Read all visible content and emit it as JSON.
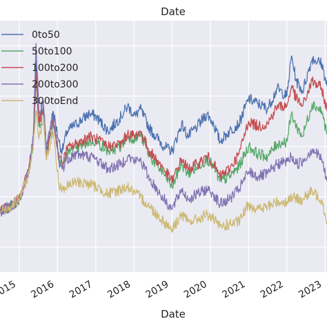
{
  "chart_data": {
    "type": "line",
    "title": "Date",
    "xlabel": "Date",
    "ylabel": "",
    "x_tick_labels": [
      "2015",
      "2016",
      "2017",
      "2018",
      "2019",
      "2020",
      "2021",
      "2022",
      "2023"
    ],
    "xlim": [
      "2014-07-01",
      "2023-01-20"
    ],
    "ylim": [
      0,
      10
    ],
    "grid": true,
    "legend_position": "top-left",
    "background_color": "#eaeaf2",
    "series": [
      {
        "name": "0to50",
        "color": "#4c72b0",
        "points": [
          [
            "2014-07-01",
            2.4
          ],
          [
            "2014-10-01",
            2.6
          ],
          [
            "2015-01-01",
            2.9
          ],
          [
            "2015-04-01",
            4.0
          ],
          [
            "2015-05-15",
            5.3
          ],
          [
            "2015-06-10",
            8.4
          ],
          [
            "2015-07-08",
            6.0
          ],
          [
            "2015-08-20",
            6.6
          ],
          [
            "2015-09-15",
            4.8
          ],
          [
            "2015-11-20",
            6.4
          ],
          [
            "2016-01-15",
            5.2
          ],
          [
            "2016-02-15",
            4.8
          ],
          [
            "2016-04-01",
            5.6
          ],
          [
            "2016-07-01",
            5.9
          ],
          [
            "2016-11-01",
            6.3
          ],
          [
            "2017-01-01",
            6.2
          ],
          [
            "2017-05-01",
            5.6
          ],
          [
            "2017-09-01",
            6.2
          ],
          [
            "2017-11-01",
            6.6
          ],
          [
            "2018-01-15",
            6.2
          ],
          [
            "2018-03-01",
            6.5
          ],
          [
            "2018-06-01",
            5.7
          ],
          [
            "2018-10-15",
            5.0
          ],
          [
            "2019-01-01",
            4.8
          ],
          [
            "2019-04-01",
            5.9
          ],
          [
            "2019-06-01",
            5.4
          ],
          [
            "2019-09-01",
            5.8
          ],
          [
            "2019-12-01",
            6.3
          ],
          [
            "2020-02-01",
            5.9
          ],
          [
            "2020-04-01",
            5.2
          ],
          [
            "2020-07-01",
            5.6
          ],
          [
            "2020-10-01",
            5.9
          ],
          [
            "2021-01-01",
            6.9
          ],
          [
            "2021-04-01",
            6.7
          ],
          [
            "2021-07-01",
            6.5
          ],
          [
            "2021-10-01",
            7.3
          ],
          [
            "2022-01-01",
            7.0
          ],
          [
            "2022-02-15",
            8.6
          ],
          [
            "2022-04-01",
            7.6
          ],
          [
            "2022-06-01",
            7.2
          ],
          [
            "2022-09-01",
            8.5
          ],
          [
            "2022-12-01",
            8.3
          ],
          [
            "2023-01-20",
            7.4
          ]
        ]
      },
      {
        "name": "50to100",
        "color": "#55a868",
        "points": [
          [
            "2014-07-01",
            2.4
          ],
          [
            "2014-10-01",
            2.6
          ],
          [
            "2015-01-01",
            2.9
          ],
          [
            "2015-04-01",
            4.0
          ],
          [
            "2015-05-15",
            5.2
          ],
          [
            "2015-06-10",
            7.6
          ],
          [
            "2015-07-08",
            5.8
          ],
          [
            "2015-08-20",
            6.4
          ],
          [
            "2015-09-15",
            4.6
          ],
          [
            "2015-11-20",
            6.0
          ],
          [
            "2016-01-15",
            4.5
          ],
          [
            "2016-02-15",
            4.2
          ],
          [
            "2016-04-01",
            4.7
          ],
          [
            "2016-07-01",
            4.9
          ],
          [
            "2016-11-01",
            5.2
          ],
          [
            "2017-01-01",
            5.2
          ],
          [
            "2017-05-01",
            4.8
          ],
          [
            "2017-09-01",
            5.0
          ],
          [
            "2017-11-01",
            5.4
          ],
          [
            "2018-01-15",
            5.3
          ],
          [
            "2018-03-01",
            5.5
          ],
          [
            "2018-06-01",
            4.6
          ],
          [
            "2018-10-15",
            3.9
          ],
          [
            "2019-01-01",
            3.4
          ],
          [
            "2019-04-01",
            4.3
          ],
          [
            "2019-06-01",
            3.9
          ],
          [
            "2019-09-01",
            4.2
          ],
          [
            "2019-12-01",
            4.5
          ],
          [
            "2020-02-01",
            4.2
          ],
          [
            "2020-04-01",
            3.6
          ],
          [
            "2020-07-01",
            3.8
          ],
          [
            "2020-10-01",
            4.2
          ],
          [
            "2021-01-01",
            5.0
          ],
          [
            "2021-04-01",
            4.7
          ],
          [
            "2021-07-01",
            4.6
          ],
          [
            "2021-10-01",
            5.1
          ],
          [
            "2022-01-01",
            5.2
          ],
          [
            "2022-02-15",
            6.3
          ],
          [
            "2022-04-01",
            5.8
          ],
          [
            "2022-06-01",
            5.4
          ],
          [
            "2022-09-01",
            6.7
          ],
          [
            "2022-12-01",
            6.4
          ],
          [
            "2023-01-20",
            5.5
          ]
        ]
      },
      {
        "name": "100to200",
        "color": "#c44e52",
        "points": [
          [
            "2014-07-01",
            2.4
          ],
          [
            "2014-10-01",
            2.6
          ],
          [
            "2015-01-01",
            2.9
          ],
          [
            "2015-04-01",
            4.0
          ],
          [
            "2015-05-15",
            5.2
          ],
          [
            "2015-06-10",
            7.9
          ],
          [
            "2015-07-08",
            5.9
          ],
          [
            "2015-08-20",
            6.5
          ],
          [
            "2015-09-15",
            4.7
          ],
          [
            "2015-11-20",
            6.1
          ],
          [
            "2016-01-15",
            4.7
          ],
          [
            "2016-02-15",
            4.3
          ],
          [
            "2016-04-01",
            4.9
          ],
          [
            "2016-07-01",
            5.1
          ],
          [
            "2016-11-01",
            5.4
          ],
          [
            "2017-01-01",
            5.3
          ],
          [
            "2017-05-01",
            5.0
          ],
          [
            "2017-09-01",
            5.1
          ],
          [
            "2017-11-01",
            5.5
          ],
          [
            "2018-01-15",
            5.4
          ],
          [
            "2018-03-01",
            5.6
          ],
          [
            "2018-06-01",
            4.8
          ],
          [
            "2018-10-15",
            4.1
          ],
          [
            "2019-01-01",
            3.6
          ],
          [
            "2019-04-01",
            4.5
          ],
          [
            "2019-06-01",
            4.1
          ],
          [
            "2019-09-01",
            4.3
          ],
          [
            "2019-12-01",
            4.6
          ],
          [
            "2020-02-01",
            4.3
          ],
          [
            "2020-04-01",
            3.8
          ],
          [
            "2020-07-01",
            4.1
          ],
          [
            "2020-10-01",
            4.7
          ],
          [
            "2021-01-01",
            6.0
          ],
          [
            "2021-04-01",
            5.8
          ],
          [
            "2021-07-01",
            5.9
          ],
          [
            "2021-10-01",
            6.6
          ],
          [
            "2022-01-01",
            6.6
          ],
          [
            "2022-02-15",
            7.4
          ],
          [
            "2022-04-01",
            6.9
          ],
          [
            "2022-06-01",
            6.6
          ],
          [
            "2022-09-01",
            7.6
          ],
          [
            "2022-12-01",
            7.3
          ],
          [
            "2023-01-20",
            6.4
          ]
        ]
      },
      {
        "name": "200to300",
        "color": "#8172b2",
        "points": [
          [
            "2014-07-01",
            2.4
          ],
          [
            "2014-10-01",
            2.6
          ],
          [
            "2015-01-01",
            2.9
          ],
          [
            "2015-04-01",
            4.0
          ],
          [
            "2015-05-15",
            5.4
          ],
          [
            "2015-06-10",
            9.1
          ],
          [
            "2015-07-08",
            6.3
          ],
          [
            "2015-08-20",
            6.8
          ],
          [
            "2015-09-15",
            4.9
          ],
          [
            "2015-11-20",
            6.2
          ],
          [
            "2016-01-15",
            4.4
          ],
          [
            "2016-02-15",
            4.1
          ],
          [
            "2016-04-01",
            4.5
          ],
          [
            "2016-07-01",
            4.7
          ],
          [
            "2016-11-01",
            4.6
          ],
          [
            "2017-01-01",
            4.5
          ],
          [
            "2017-05-01",
            4.1
          ],
          [
            "2017-09-01",
            4.3
          ],
          [
            "2017-11-01",
            4.6
          ],
          [
            "2018-01-15",
            4.4
          ],
          [
            "2018-03-01",
            4.5
          ],
          [
            "2018-06-01",
            3.7
          ],
          [
            "2018-10-15",
            2.9
          ],
          [
            "2019-01-01",
            2.5
          ],
          [
            "2019-04-01",
            3.3
          ],
          [
            "2019-06-01",
            2.9
          ],
          [
            "2019-09-01",
            3.1
          ],
          [
            "2019-12-01",
            3.3
          ],
          [
            "2020-02-01",
            3.1
          ],
          [
            "2020-04-01",
            2.7
          ],
          [
            "2020-07-01",
            2.9
          ],
          [
            "2020-10-01",
            3.3
          ],
          [
            "2021-01-01",
            4.0
          ],
          [
            "2021-04-01",
            3.8
          ],
          [
            "2021-07-01",
            3.9
          ],
          [
            "2021-10-01",
            4.3
          ],
          [
            "2022-01-01",
            4.4
          ],
          [
            "2022-02-15",
            4.6
          ],
          [
            "2022-04-01",
            4.3
          ],
          [
            "2022-06-01",
            4.4
          ],
          [
            "2022-09-01",
            4.9
          ],
          [
            "2022-12-01",
            4.5
          ],
          [
            "2023-01-20",
            3.6
          ]
        ]
      },
      {
        "name": "300toEnd",
        "color": "#ccb974",
        "points": [
          [
            "2014-07-01",
            2.4
          ],
          [
            "2014-10-01",
            2.6
          ],
          [
            "2015-01-01",
            2.9
          ],
          [
            "2015-04-01",
            3.9
          ],
          [
            "2015-05-15",
            5.0
          ],
          [
            "2015-06-10",
            6.4
          ],
          [
            "2015-07-08",
            5.3
          ],
          [
            "2015-08-20",
            6.2
          ],
          [
            "2015-09-15",
            4.5
          ],
          [
            "2015-11-20",
            5.6
          ],
          [
            "2016-01-15",
            3.5
          ],
          [
            "2016-02-15",
            3.3
          ],
          [
            "2016-04-01",
            3.4
          ],
          [
            "2016-07-01",
            3.6
          ],
          [
            "2016-11-01",
            3.5
          ],
          [
            "2017-01-01",
            3.4
          ],
          [
            "2017-05-01",
            3.1
          ],
          [
            "2017-09-01",
            3.3
          ],
          [
            "2017-11-01",
            3.4
          ],
          [
            "2018-01-15",
            3.1
          ],
          [
            "2018-03-01",
            3.0
          ],
          [
            "2018-06-01",
            2.6
          ],
          [
            "2018-10-15",
            2.0
          ],
          [
            "2019-01-01",
            1.7
          ],
          [
            "2019-04-01",
            2.3
          ],
          [
            "2019-06-01",
            2.0
          ],
          [
            "2019-09-01",
            2.1
          ],
          [
            "2019-12-01",
            2.3
          ],
          [
            "2020-02-01",
            2.1
          ],
          [
            "2020-04-01",
            1.8
          ],
          [
            "2020-07-01",
            1.9
          ],
          [
            "2020-10-01",
            2.0
          ],
          [
            "2021-01-01",
            2.7
          ],
          [
            "2021-04-01",
            2.5
          ],
          [
            "2021-07-01",
            2.6
          ],
          [
            "2021-10-01",
            2.8
          ],
          [
            "2022-01-01",
            2.8
          ],
          [
            "2022-02-15",
            3.0
          ],
          [
            "2022-04-01",
            2.9
          ],
          [
            "2022-06-01",
            2.9
          ],
          [
            "2022-09-01",
            3.2
          ],
          [
            "2022-12-01",
            2.9
          ],
          [
            "2023-01-20",
            2.0
          ]
        ]
      }
    ]
  }
}
